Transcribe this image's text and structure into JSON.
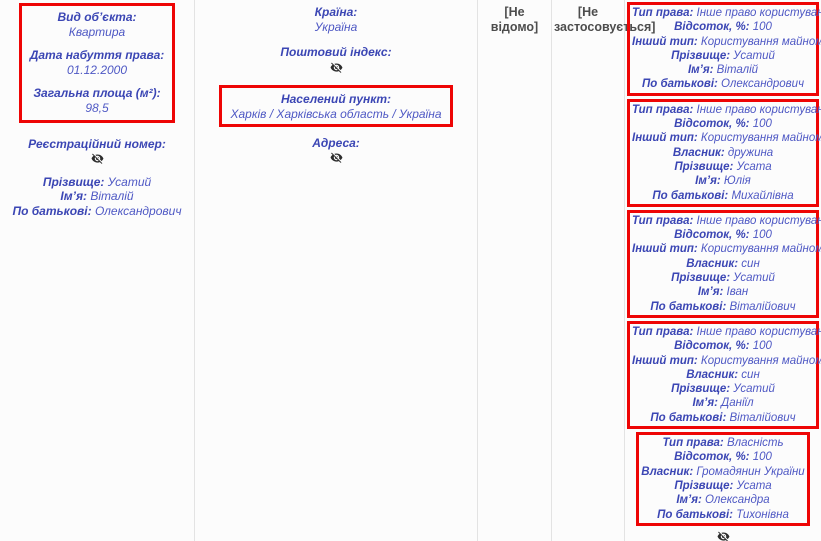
{
  "colors": {
    "accent_text": "#3f51b5",
    "highlight_border": "#ee0505",
    "neutral_text": "#4d4d4d",
    "cell_border": "#e3e3e3",
    "background": "#fcfcfc"
  },
  "icons": {
    "hidden_value": "eye-off"
  },
  "cells": {
    "object": {
      "highlighted_fields": [
        {
          "label": "Вид об’єкта:",
          "value": "Квартира"
        },
        {
          "label": "Дата набуття права:",
          "value": "01.12.2000"
        },
        {
          "label": "Загальна площа (м²):",
          "value": "98,5"
        }
      ],
      "registration_field": {
        "label": "Реєстраційний номер:",
        "hidden": true
      },
      "owner_fields": [
        {
          "label": "Прізвище:",
          "value": "Усатий"
        },
        {
          "label": "Ім’я:",
          "value": "Віталій"
        },
        {
          "label": "По батькові:",
          "value": "Олександрович"
        }
      ]
    },
    "address": {
      "fields_before": [
        {
          "label": "Країна:",
          "value": "Україна"
        },
        {
          "label": "Поштовий індекс:",
          "hidden": true
        }
      ],
      "highlighted_fields": [
        {
          "label": "Населений пункт:",
          "value": "Харків / Харківська область / Україна"
        }
      ],
      "fields_after": [
        {
          "label": "Адреса:",
          "hidden": true
        }
      ]
    },
    "unknown": {
      "text": "[Не відомо]"
    },
    "not_applicable": {
      "text": "[Не застосовується]"
    },
    "rights": {
      "blocks": [
        {
          "lines": [
            {
              "label": "Тип права:",
              "value": "Інше право користування"
            },
            {
              "label": "Відсоток, %:",
              "value": "100"
            },
            {
              "label": "Інший тип:",
              "value": "Користування майном"
            },
            {
              "label": "Прізвище:",
              "value": "Усатий"
            },
            {
              "label": "Ім’я:",
              "value": "Віталій"
            },
            {
              "label": "По батькові:",
              "value": "Олександрович"
            }
          ]
        },
        {
          "lines": [
            {
              "label": "Тип права:",
              "value": "Інше право користування"
            },
            {
              "label": "Відсоток, %:",
              "value": "100"
            },
            {
              "label": "Інший тип:",
              "value": "Користування майном"
            },
            {
              "label": "Власник:",
              "value": "дружина"
            },
            {
              "label": "Прізвище:",
              "value": "Усата"
            },
            {
              "label": "Ім’я:",
              "value": "Юлія"
            },
            {
              "label": "По батькові:",
              "value": "Михайлівна"
            }
          ]
        },
        {
          "lines": [
            {
              "label": "Тип права:",
              "value": "Інше право користування"
            },
            {
              "label": "Відсоток, %:",
              "value": "100"
            },
            {
              "label": "Інший тип:",
              "value": "Користування майном"
            },
            {
              "label": "Власник:",
              "value": "син"
            },
            {
              "label": "Прізвище:",
              "value": "Усатий"
            },
            {
              "label": "Ім’я:",
              "value": "Іван"
            },
            {
              "label": "По батькові:",
              "value": "Віталійович"
            }
          ]
        },
        {
          "lines": [
            {
              "label": "Тип права:",
              "value": "Інше право користування"
            },
            {
              "label": "Відсоток, %:",
              "value": "100"
            },
            {
              "label": "Інший тип:",
              "value": "Користування майном"
            },
            {
              "label": "Власник:",
              "value": "син"
            },
            {
              "label": "Прізвище:",
              "value": "Усатий"
            },
            {
              "label": "Ім’я:",
              "value": "Даніїл"
            },
            {
              "label": "По батькові:",
              "value": "Віталійович"
            }
          ]
        },
        {
          "lines": [
            {
              "label": "Тип права:",
              "value": "Власність"
            },
            {
              "label": "Відсоток, %:",
              "value": "100"
            },
            {
              "label": "Власник:",
              "value": "Громадянин України"
            },
            {
              "label": "Прізвище:",
              "value": "Усата"
            },
            {
              "label": "Ім’я:",
              "value": "Олександра"
            },
            {
              "label": "По батькові:",
              "value": "Тихонівна"
            }
          ]
        }
      ],
      "trailing_hidden_value": true
    }
  }
}
